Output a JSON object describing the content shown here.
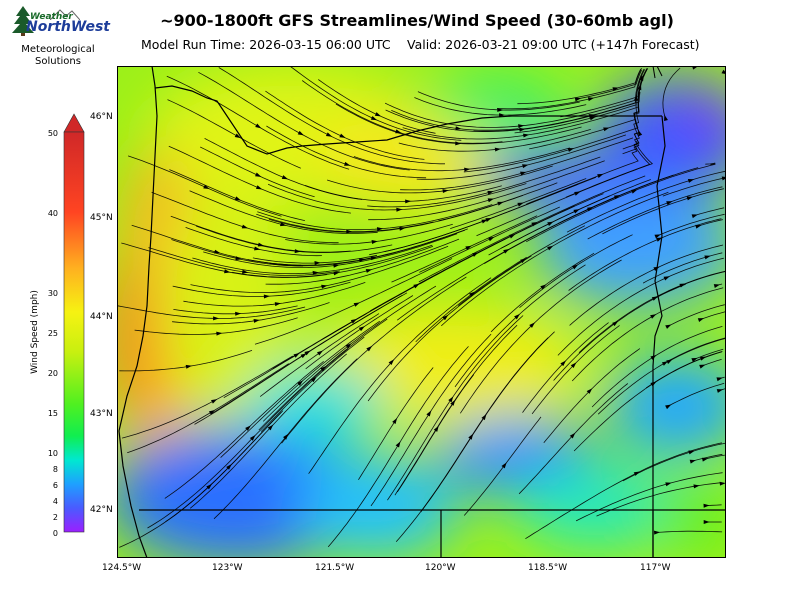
{
  "header": {
    "title": "~900-1800ft GFS Streamlines/Wind Speed (30-60mb agl)",
    "model_run": "Model Run Time: 2026-03-15 06:00 UTC",
    "valid": "Valid: 2026-03-21 09:00 UTC  (+147h Forecast)"
  },
  "logo": {
    "line1": "Weather",
    "line2": "NorthWest",
    "subtitle_line1": "Meteorological",
    "subtitle_line2": "Solutions"
  },
  "colorbar": {
    "label": "Wind Speed (mph)",
    "ticks": [
      "0",
      "2",
      "4",
      "6",
      "8",
      "10",
      "15",
      "20",
      "25",
      "30",
      "40",
      "50"
    ],
    "colors": [
      "#9b1fff",
      "#2f6bff",
      "#19b7ff",
      "#00f0a8",
      "#28f028",
      "#a8f010",
      "#f2f20e",
      "#ffb21a",
      "#ff3a22",
      "#d92828"
    ]
  },
  "map": {
    "lat_labels": [
      "46°N",
      "45°N",
      "44°N",
      "43°N",
      "42°N"
    ],
    "lon_labels": [
      "124.5°W",
      "123°W",
      "121.5°W",
      "120°W",
      "118.5°W",
      "117°W"
    ]
  }
}
